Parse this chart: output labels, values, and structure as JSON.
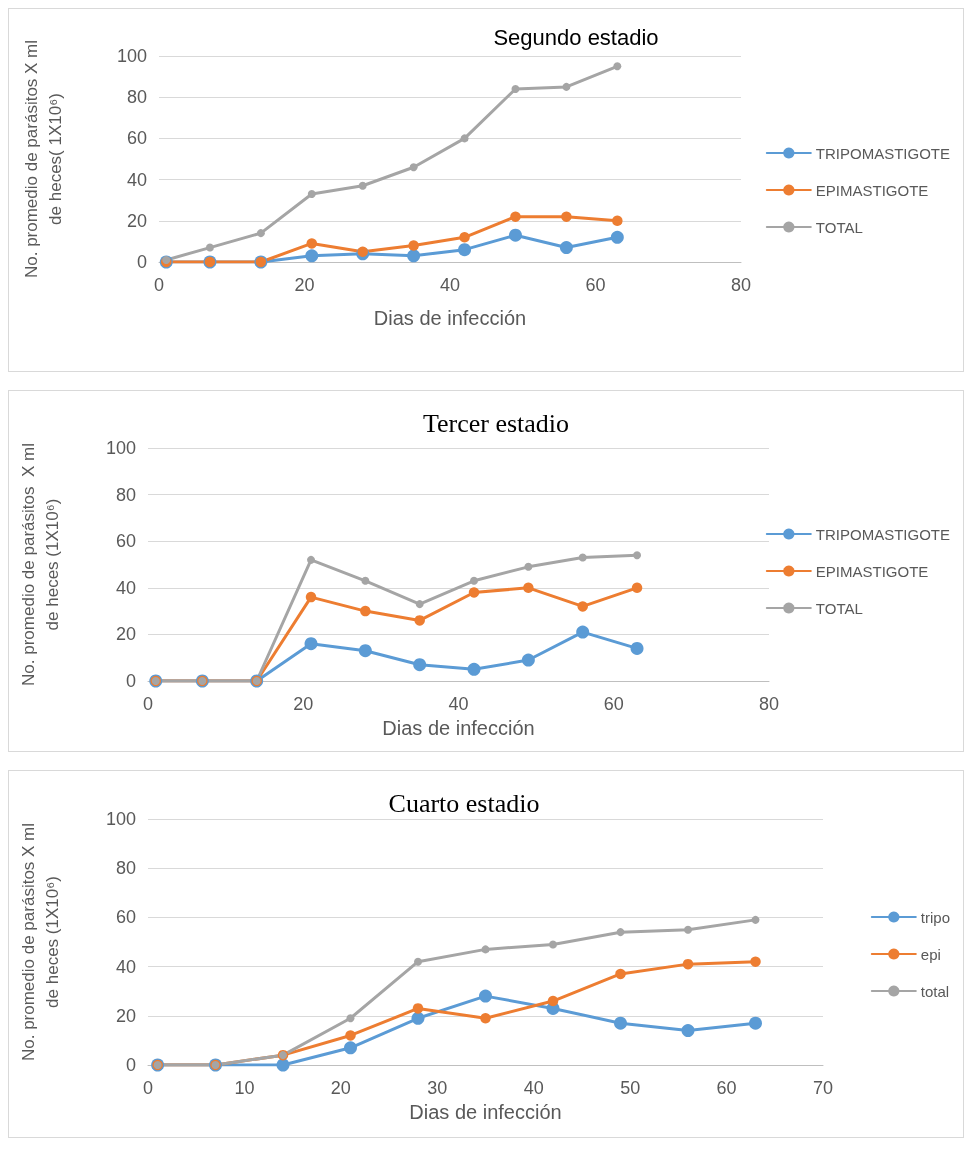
{
  "chart_data": [
    {
      "type": "line",
      "title": "Segundo estadio",
      "xlabel": "Dias de infección",
      "ylabel": "No. promedio de parásitos X ml de heces( 1X10⁶)",
      "x": [
        1,
        7,
        14,
        21,
        28,
        35,
        42,
        49,
        56,
        63
      ],
      "xlim": [
        0,
        80
      ],
      "xticks": [
        0,
        20,
        40,
        60,
        80
      ],
      "ylim": [
        0,
        100
      ],
      "yticks": [
        0,
        20,
        40,
        60,
        80,
        100
      ],
      "grid": "y",
      "legend": "right",
      "marker": "circle",
      "line_style": "solid",
      "series": [
        {
          "name": "TRIPOMASTIGOTE",
          "color": "#5b9bd5",
          "values": [
            0,
            0,
            0,
            3,
            4,
            3,
            6,
            13,
            7,
            12
          ]
        },
        {
          "name": "EPIMASTIGOTE",
          "color": "#ed7d31",
          "values": [
            0,
            0,
            0,
            9,
            5,
            8,
            12,
            22,
            22,
            20
          ]
        },
        {
          "name": "TOTAL",
          "color": "#a5a5a5",
          "values": [
            1,
            7,
            14,
            33,
            37,
            46,
            60,
            84,
            85,
            95
          ]
        }
      ]
    },
    {
      "type": "line",
      "title": "Tercer estadio",
      "xlabel": "Dias de infección",
      "ylabel": "No. promedio de parásitos  X ml de heces (1X10⁶)",
      "x": [
        1,
        7,
        14,
        21,
        28,
        35,
        42,
        49,
        56,
        63
      ],
      "xlim": [
        0,
        80
      ],
      "xticks": [
        0,
        20,
        40,
        60,
        80
      ],
      "ylim": [
        0,
        100
      ],
      "yticks": [
        0,
        20,
        40,
        60,
        80,
        100
      ],
      "grid": "y",
      "legend": "right",
      "marker": "circle",
      "line_style": "solid",
      "series": [
        {
          "name": "TRIPOMASTIGOTE",
          "color": "#5b9bd5",
          "values": [
            0,
            0,
            0,
            16,
            13,
            7,
            5,
            9,
            21,
            14
          ]
        },
        {
          "name": "EPIMASTIGOTE",
          "color": "#ed7d31",
          "values": [
            0,
            0,
            0,
            36,
            30,
            26,
            38,
            40,
            32,
            40
          ]
        },
        {
          "name": "TOTAL",
          "color": "#a5a5a5",
          "values": [
            0,
            0,
            0,
            52,
            43,
            33,
            43,
            49,
            53,
            54
          ]
        }
      ]
    },
    {
      "type": "line",
      "title": "Cuarto estadio",
      "xlabel": "Dias de infección",
      "ylabel": "No. promedio de parásitos X ml de heces (1X10⁶)",
      "x": [
        1,
        7,
        14,
        21,
        28,
        35,
        42,
        49,
        56,
        63
      ],
      "xlim": [
        0,
        70
      ],
      "xticks": [
        0,
        10,
        20,
        30,
        40,
        50,
        60,
        70
      ],
      "ylim": [
        0,
        100
      ],
      "yticks": [
        0,
        20,
        40,
        60,
        80,
        100
      ],
      "grid": "y",
      "legend": "right",
      "marker": "circle",
      "line_style": "solid",
      "series": [
        {
          "name": "tripo",
          "color": "#5b9bd5",
          "values": [
            0,
            0,
            0,
            7,
            19,
            28,
            23,
            17,
            14,
            17
          ]
        },
        {
          "name": "epi",
          "color": "#ed7d31",
          "values": [
            0,
            0,
            4,
            12,
            23,
            19,
            26,
            37,
            41,
            42
          ]
        },
        {
          "name": "total",
          "color": "#a5a5a5",
          "values": [
            0,
            0,
            4,
            19,
            42,
            47,
            49,
            54,
            55,
            59
          ]
        }
      ]
    }
  ]
}
